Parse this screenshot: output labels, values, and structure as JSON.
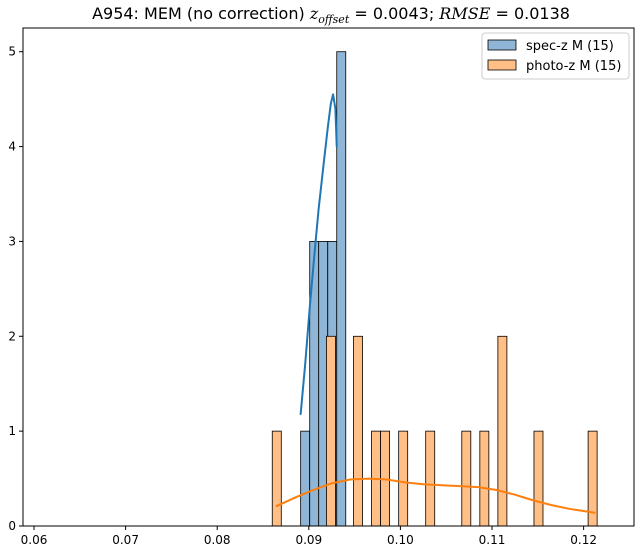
{
  "chart_data": {
    "type": "bar",
    "title": {
      "prefix": "A954: MEM (no correction) ",
      "z_symbol": "z",
      "z_sub": "offset",
      "z_value": " = 0.0043; ",
      "rmse_symbol": "RMSE",
      "rmse_value": " = 0.0138"
    },
    "xlabel": "",
    "ylabel": "",
    "xlim": [
      0.0588,
      0.1255
    ],
    "ylim": [
      0,
      5.25
    ],
    "x_ticks": [
      {
        "value": 0.06,
        "label": "0.06"
      },
      {
        "value": 0.07,
        "label": "0.07"
      },
      {
        "value": 0.08,
        "label": "0.08"
      },
      {
        "value": 0.09,
        "label": "0.09"
      },
      {
        "value": 0.1,
        "label": "0.10"
      },
      {
        "value": 0.11,
        "label": "0.11"
      },
      {
        "value": 0.12,
        "label": "0.12"
      }
    ],
    "y_ticks": [
      {
        "value": 0,
        "label": "0"
      },
      {
        "value": 1,
        "label": "1"
      },
      {
        "value": 2,
        "label": "2"
      },
      {
        "value": 3,
        "label": "3"
      },
      {
        "value": 4,
        "label": "4"
      },
      {
        "value": 5,
        "label": "5"
      }
    ],
    "grid": false,
    "legend_position": "top-right",
    "series": [
      {
        "name": "spec-z M (15)",
        "bar_color": "#8fb6d6",
        "line_color": "#1f77b4",
        "bin_width": 0.000985,
        "bins": [
          {
            "x0": 0.08911,
            "count": 1
          },
          {
            "x0": 0.0901,
            "count": 3
          },
          {
            "x0": 0.09108,
            "count": 3
          },
          {
            "x0": 0.09207,
            "count": 3
          },
          {
            "x0": 0.09305,
            "count": 5
          }
        ],
        "kde": [
          [
            0.08911,
            1.18
          ],
          [
            0.0896,
            1.7
          ],
          [
            0.0901,
            2.3
          ],
          [
            0.0906,
            2.85
          ],
          [
            0.09108,
            3.35
          ],
          [
            0.0916,
            3.8
          ],
          [
            0.09207,
            4.2
          ],
          [
            0.0924,
            4.45
          ],
          [
            0.09265,
            4.55
          ],
          [
            0.0929,
            4.4
          ],
          [
            0.09305,
            4.0
          ]
        ]
      },
      {
        "name": "photo-z M (15)",
        "bar_color": "#ffbf87",
        "line_color": "#ff7f0e",
        "bin_width": 0.000985,
        "bins": [
          {
            "x0": 0.08601,
            "count": 1
          },
          {
            "x0": 0.09192,
            "count": 2
          },
          {
            "x0": 0.09488,
            "count": 2
          },
          {
            "x0": 0.09685,
            "count": 1
          },
          {
            "x0": 0.09783,
            "count": 1
          },
          {
            "x0": 0.09981,
            "count": 1
          },
          {
            "x0": 0.10276,
            "count": 1
          },
          {
            "x0": 0.1067,
            "count": 1
          },
          {
            "x0": 0.10867,
            "count": 1
          },
          {
            "x0": 0.11064,
            "count": 2
          },
          {
            "x0": 0.11458,
            "count": 1
          },
          {
            "x0": 0.12049,
            "count": 1
          }
        ],
        "kde": [
          [
            0.0865,
            0.21
          ],
          [
            0.0885,
            0.3
          ],
          [
            0.0905,
            0.38
          ],
          [
            0.0925,
            0.45
          ],
          [
            0.0945,
            0.49
          ],
          [
            0.0965,
            0.5
          ],
          [
            0.0985,
            0.49
          ],
          [
            0.1005,
            0.46
          ],
          [
            0.1025,
            0.44
          ],
          [
            0.1045,
            0.43
          ],
          [
            0.1065,
            0.42
          ],
          [
            0.1085,
            0.41
          ],
          [
            0.1105,
            0.38
          ],
          [
            0.1125,
            0.33
          ],
          [
            0.1145,
            0.27
          ],
          [
            0.1165,
            0.22
          ],
          [
            0.1185,
            0.18
          ],
          [
            0.1205,
            0.15
          ],
          [
            0.1212,
            0.14
          ]
        ]
      }
    ]
  }
}
